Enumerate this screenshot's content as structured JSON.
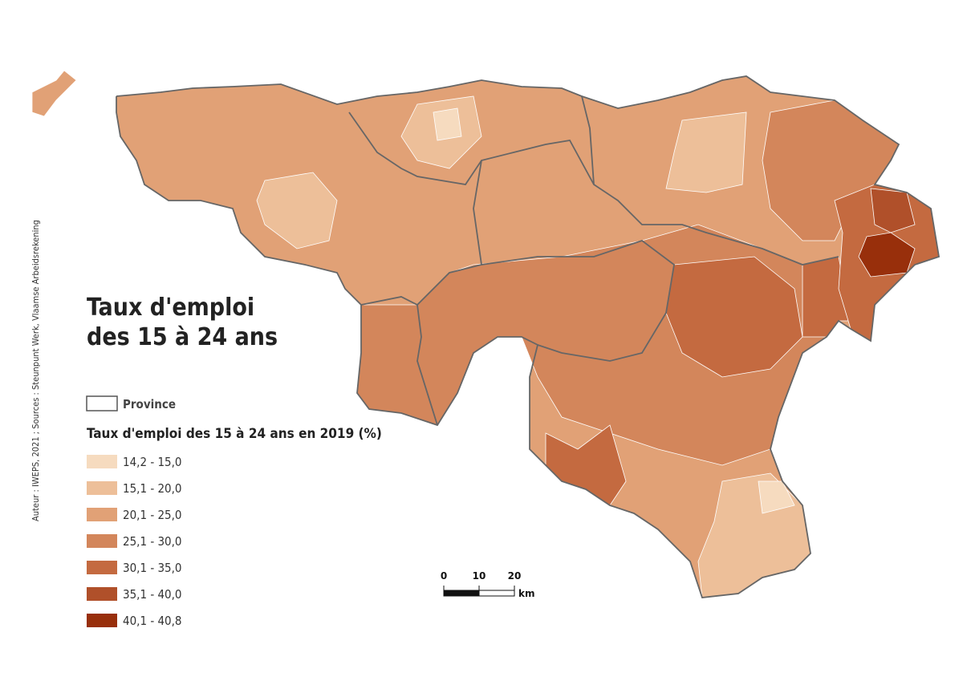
{
  "title": [
    "Taux d'emploi",
    "des 15 à 24 ans"
  ],
  "source": "Auteur : IWEPS, 2021 ; Sources : Steunpunt Werk, Vlaamse Arbeidsrekening",
  "legend": {
    "province_label": "Province",
    "heading": "Taux d'emploi des 15 à 24 ans en 2019 (%)",
    "classes": [
      {
        "label": "14,2 - 15,0",
        "color": "#f6dbbf"
      },
      {
        "label": "15,1 - 20,0",
        "color": "#edbf99"
      },
      {
        "label": "20,1 - 25,0",
        "color": "#e1a176"
      },
      {
        "label": "25,1 - 30,0",
        "color": "#d3865b"
      },
      {
        "label": "30,1 - 35,0",
        "color": "#c46a40"
      },
      {
        "label": "35,1 - 40,0",
        "color": "#b0502a"
      },
      {
        "label": "40,1 - 40,8",
        "color": "#982f0b"
      }
    ]
  },
  "scale": {
    "ticks": [
      0,
      10,
      20
    ],
    "unit": "km"
  }
}
